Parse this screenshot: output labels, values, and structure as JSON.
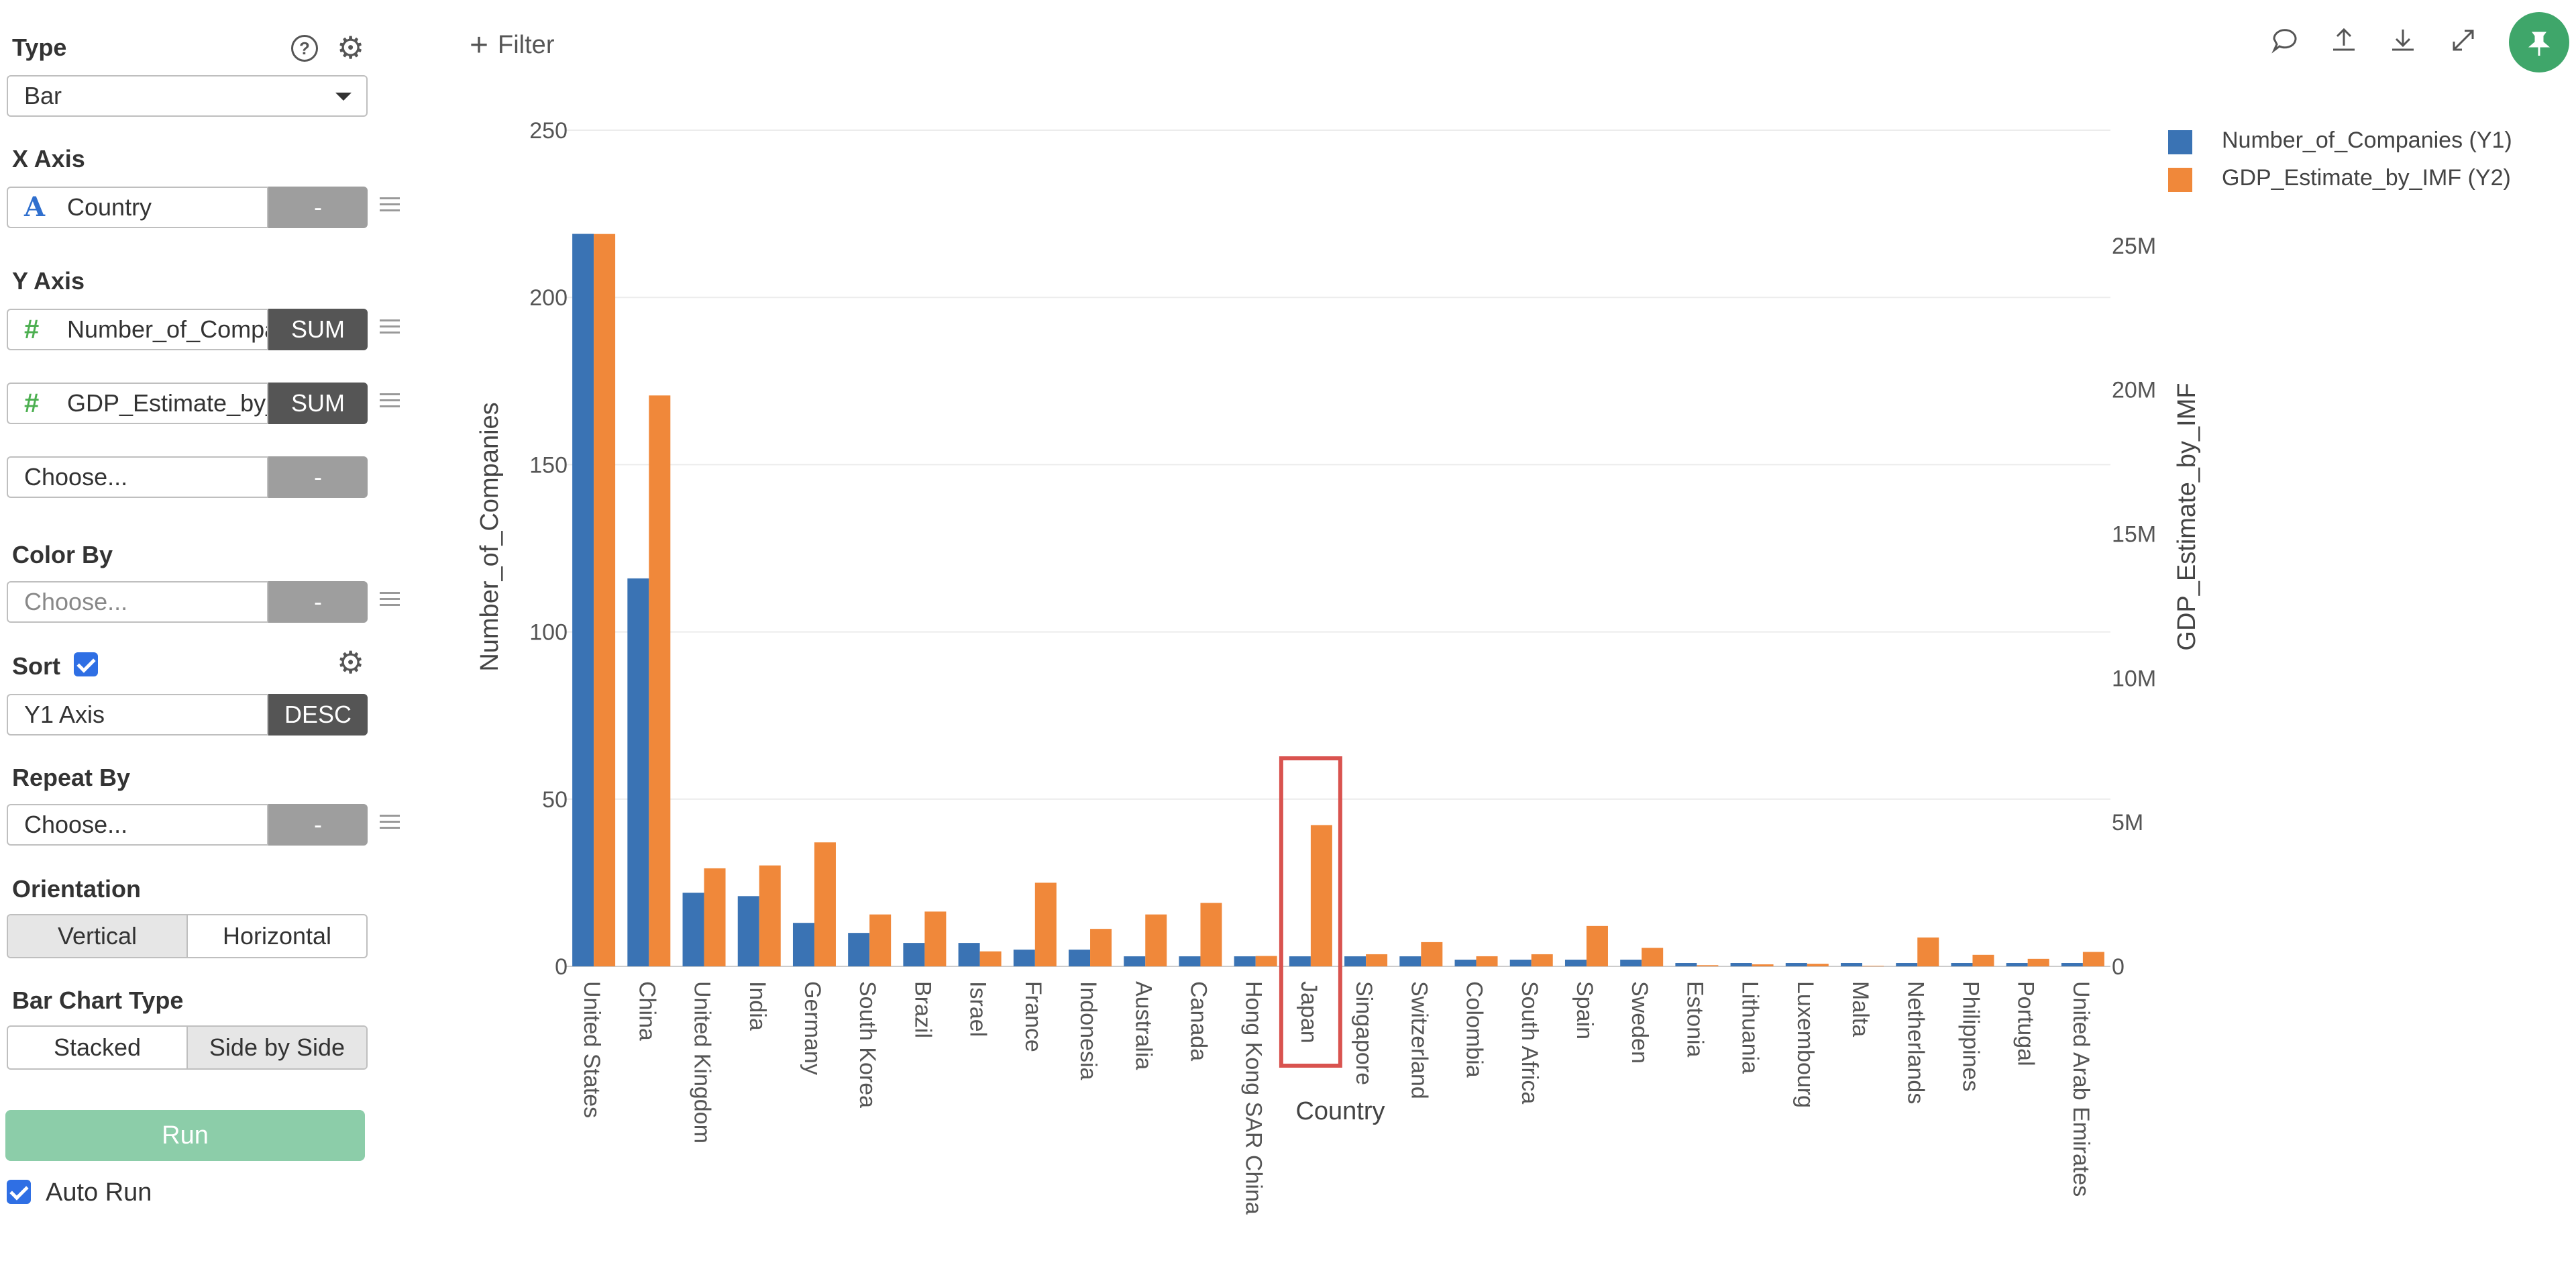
{
  "panel": {
    "type_label": "Type",
    "type_value": "Bar",
    "x_axis_label": "X Axis",
    "x_axis_field": "Country",
    "x_axis_agg": "-",
    "y_axis_label": "Y Axis",
    "y1_field": "Number_of_Compa",
    "y1_agg": "SUM",
    "y2_field": "GDP_Estimate_by_",
    "y2_agg": "SUM",
    "y3_placeholder": "Choose...",
    "y3_agg": "-",
    "color_by_label": "Color By",
    "color_by_placeholder": "Choose...",
    "color_by_agg": "-",
    "sort_label": "Sort",
    "sort_value": "Y1 Axis",
    "sort_order": "DESC",
    "repeat_by_label": "Repeat By",
    "repeat_by_placeholder": "Choose...",
    "repeat_by_agg": "-",
    "orientation_label": "Orientation",
    "orientation_vertical": "Vertical",
    "orientation_horizontal": "Horizontal",
    "bar_type_label": "Bar Chart Type",
    "bar_type_stacked": "Stacked",
    "bar_type_side": "Side by Side",
    "run_label": "Run",
    "auto_run_label": "Auto Run"
  },
  "toolbar": {
    "filter_label": "Filter",
    "icons": [
      "comment-icon",
      "upload-icon",
      "download-icon",
      "expand-icon",
      "pin-icon"
    ]
  },
  "colors": {
    "y1": "#3a73b4",
    "y2": "#f0883a",
    "highlight": "#d9534f",
    "run": "#8ccda9",
    "pin": "#3fa66a"
  },
  "chart_data": {
    "type": "bar",
    "xlabel": "Country",
    "ylabel": "Number_of_Companies",
    "y2label": "GDP_Estimate_by_IMF",
    "ylim": [
      0,
      250
    ],
    "y2lim": [
      0,
      29000000
    ],
    "yticks": [
      "0",
      "50",
      "100",
      "150",
      "200",
      "250"
    ],
    "y2ticks": [
      "0",
      "5M",
      "10M",
      "15M",
      "20M",
      "25M"
    ],
    "categories": [
      "United States",
      "China",
      "United Kingdom",
      "India",
      "Germany",
      "South Korea",
      "Brazil",
      "Israel",
      "France",
      "Indonesia",
      "Australia",
      "Canada",
      "Hong Kong SAR China",
      "Japan",
      "Singapore",
      "Switzerland",
      "Colombia",
      "South Africa",
      "Spain",
      "Sweden",
      "Estonia",
      "Lithuania",
      "Luxembourg",
      "Malta",
      "Netherlands",
      "Philippines",
      "Portugal",
      "United Arab Emirates"
    ],
    "series": [
      {
        "name": "Number_of_Companies (Y1)",
        "axis": "y1",
        "values": [
          219,
          116,
          22,
          21,
          13,
          10,
          7,
          7,
          5,
          5,
          3,
          3,
          3,
          3,
          3,
          3,
          2,
          2,
          2,
          2,
          1,
          1,
          1,
          1,
          1,
          1,
          1,
          1
        ]
      },
      {
        "name": "GDP_Estimate_by_IMF (Y2)",
        "axis": "y2",
        "values": [
          25400000,
          19800000,
          3400000,
          3500000,
          4300000,
          1800000,
          1900000,
          520000,
          2900000,
          1300000,
          1800000,
          2200000,
          360000,
          4900000,
          420000,
          840000,
          350000,
          420000,
          1400000,
          640000,
          40000,
          70000,
          90000,
          20000,
          1000000,
          400000,
          260000,
          500000
        ]
      }
    ],
    "highlighted_category": "Japan",
    "legend": "top-right"
  }
}
